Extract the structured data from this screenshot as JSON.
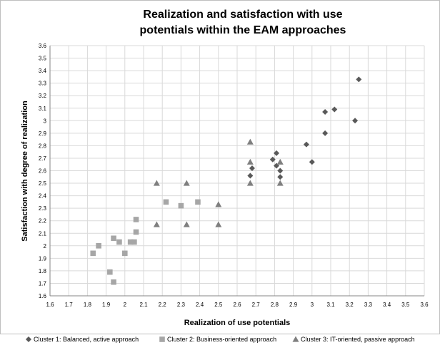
{
  "chart_data": {
    "type": "scatter",
    "title": [
      "Realization and satisfaction with use",
      "potentials within the EAM approaches"
    ],
    "xlabel": "Realization of use potentials",
    "ylabel": "Satisfaction with degree of realization",
    "xlim": [
      1.6,
      3.6
    ],
    "ylim": [
      1.6,
      3.6
    ],
    "x_ticks": [
      "1.6",
      "1.7",
      "1.8",
      "1.9",
      "2",
      "2.1",
      "2.2",
      "2.3",
      "2.4",
      "2.5",
      "2.6",
      "2.7",
      "2.8",
      "2.9",
      "3",
      "3.1",
      "3.2",
      "3.3",
      "3.4",
      "3.5",
      "3.6"
    ],
    "y_ticks": [
      "1.6",
      "1.7",
      "1.8",
      "1.9",
      "2",
      "2.1",
      "2.2",
      "2.3",
      "2.4",
      "2.5",
      "2.6",
      "2.7",
      "2.8",
      "2.9",
      "3",
      "3.1",
      "3.2",
      "3.3",
      "3.4",
      "3.5",
      "3.6"
    ],
    "grid": true,
    "legend_position": "bottom",
    "series": [
      {
        "name": "Cluster 1: Balanced, active approach",
        "marker": "diamond",
        "color": "#595959",
        "points": [
          [
            3.25,
            3.33
          ],
          [
            3.12,
            3.09
          ],
          [
            3.07,
            3.07
          ],
          [
            3.23,
            3.0
          ],
          [
            3.07,
            2.9
          ],
          [
            2.97,
            2.81
          ],
          [
            3.0,
            2.67
          ],
          [
            2.81,
            2.74
          ],
          [
            2.79,
            2.69
          ],
          [
            2.81,
            2.64
          ],
          [
            2.83,
            2.6
          ],
          [
            2.67,
            2.56
          ],
          [
            2.68,
            2.62
          ],
          [
            2.83,
            2.55
          ]
        ]
      },
      {
        "name": "Cluster 2: Business-oriented approach",
        "marker": "square",
        "color": "#a6a6a6",
        "points": [
          [
            2.39,
            2.35
          ],
          [
            2.22,
            2.35
          ],
          [
            2.3,
            2.32
          ],
          [
            2.06,
            2.21
          ],
          [
            2.06,
            2.11
          ],
          [
            1.94,
            2.06
          ],
          [
            1.97,
            2.03
          ],
          [
            2.03,
            2.03
          ],
          [
            2.05,
            2.03
          ],
          [
            1.86,
            2.0
          ],
          [
            1.83,
            1.94
          ],
          [
            2.0,
            1.94
          ],
          [
            1.92,
            1.79
          ],
          [
            1.94,
            1.71
          ]
        ]
      },
      {
        "name": "Cluster 3: IT-oriented, passive approach",
        "marker": "triangle",
        "color": "#7f7f7f",
        "points": [
          [
            2.67,
            2.83
          ],
          [
            2.67,
            2.67
          ],
          [
            2.83,
            2.67
          ],
          [
            2.67,
            2.5
          ],
          [
            2.83,
            2.5
          ],
          [
            2.17,
            2.5
          ],
          [
            2.33,
            2.5
          ],
          [
            2.5,
            2.33
          ],
          [
            2.5,
            2.17
          ],
          [
            2.17,
            2.17
          ],
          [
            2.33,
            2.17
          ]
        ]
      }
    ]
  }
}
